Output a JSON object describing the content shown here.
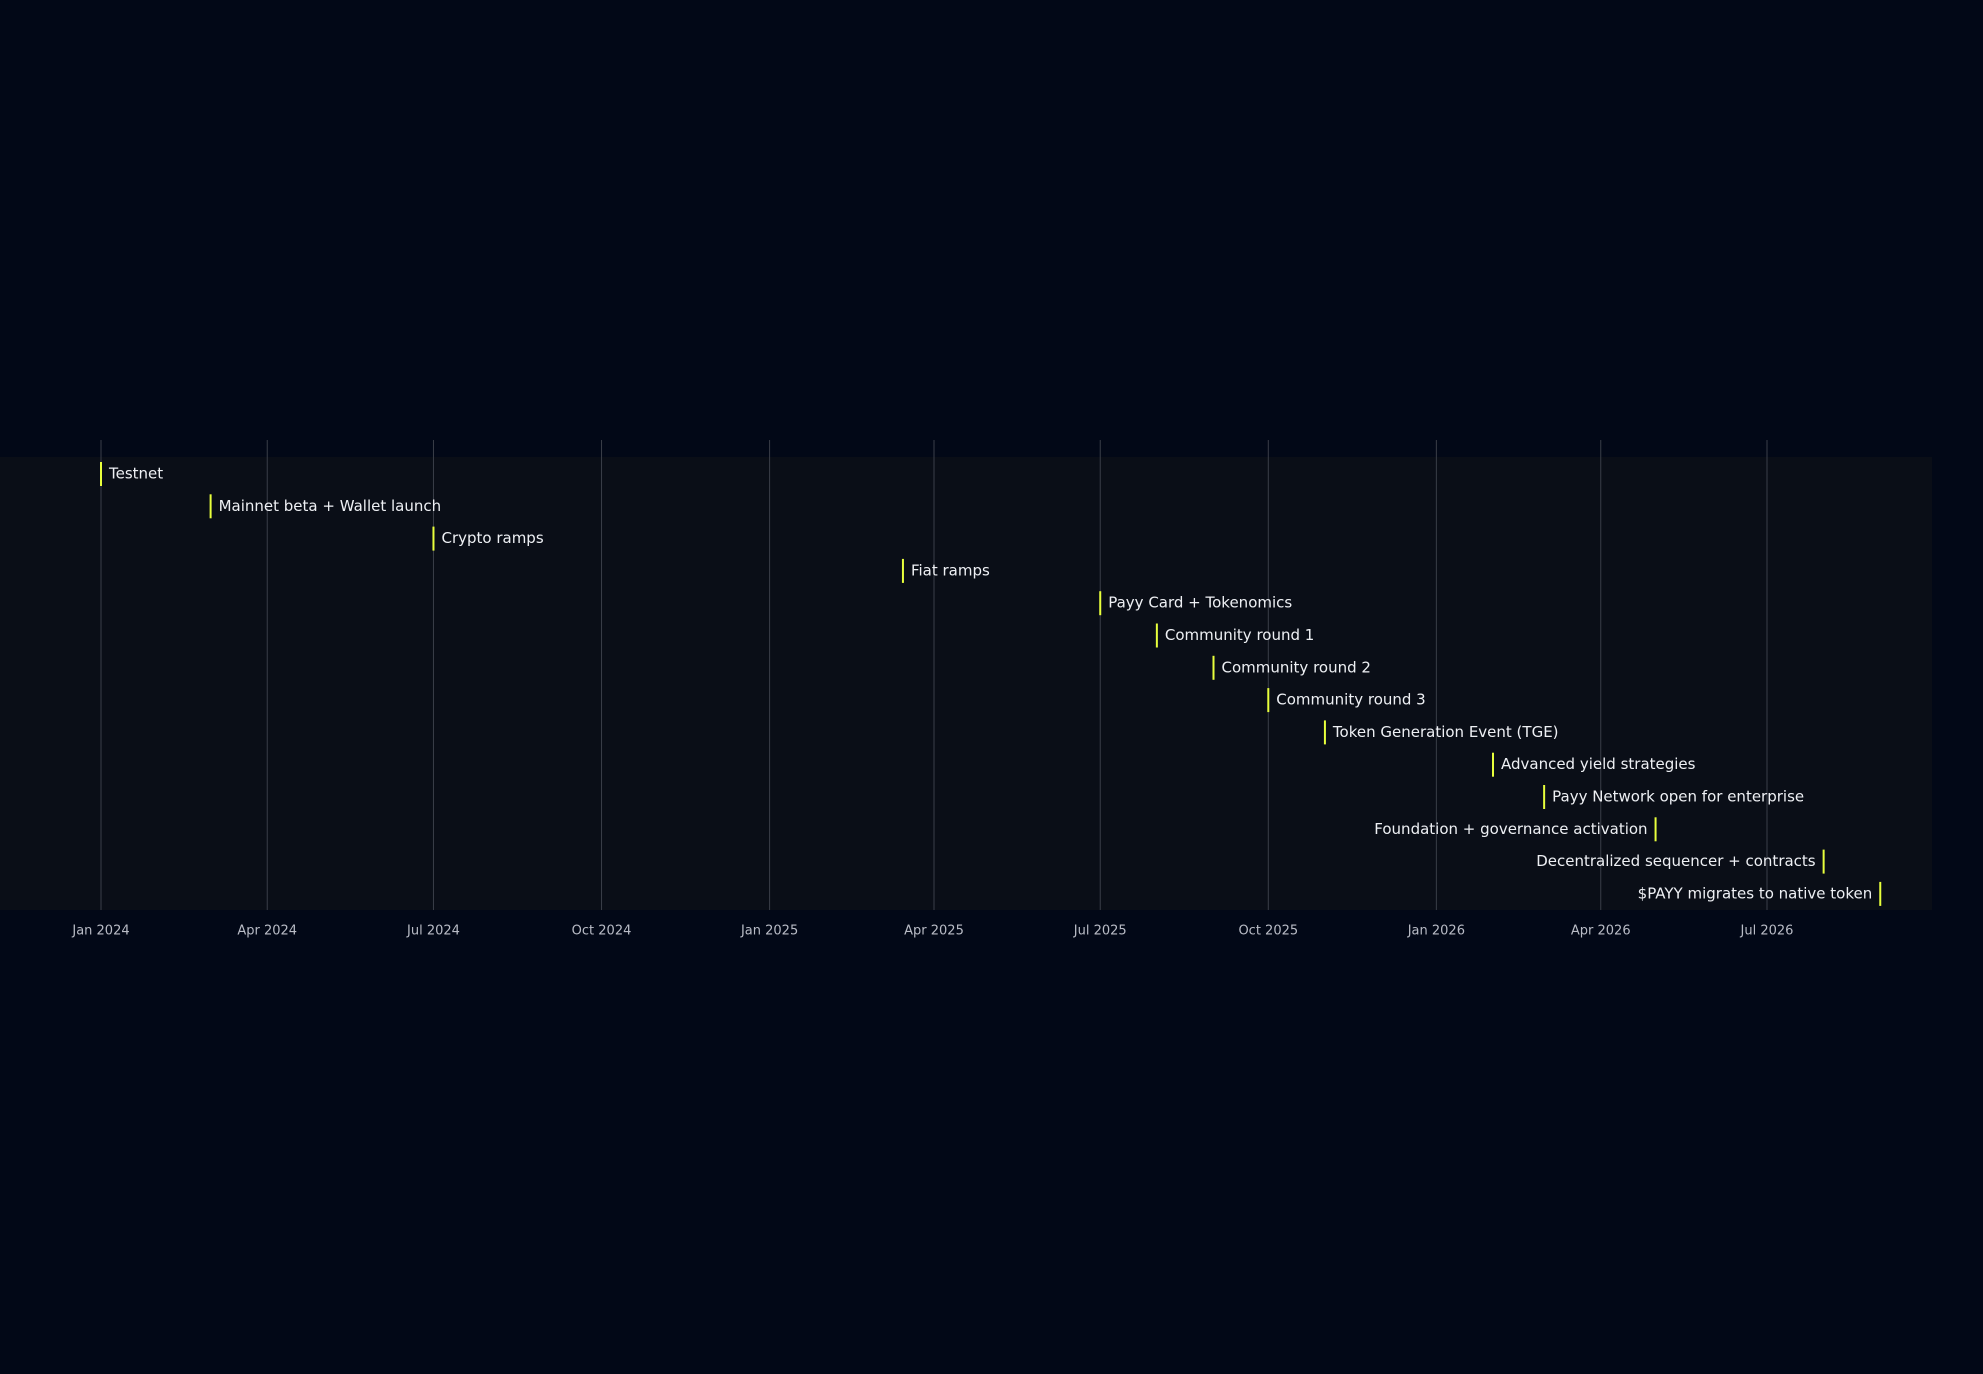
{
  "chart_data": {
    "type": "timeline",
    "title": "",
    "xlabel": "",
    "ylabel": "",
    "x_axis": {
      "type": "date",
      "range": [
        "2023-12-01",
        "2026-10-01"
      ],
      "ticks": [
        {
          "date": "2024-01-01",
          "label": "Jan 2024"
        },
        {
          "date": "2024-04-01",
          "label": "Apr 2024"
        },
        {
          "date": "2024-07-01",
          "label": "Jul 2024"
        },
        {
          "date": "2024-10-01",
          "label": "Oct 2024"
        },
        {
          "date": "2025-01-01",
          "label": "Jan 2025"
        },
        {
          "date": "2025-04-01",
          "label": "Apr 2025"
        },
        {
          "date": "2025-07-01",
          "label": "Jul 2025"
        },
        {
          "date": "2025-10-01",
          "label": "Oct 2025"
        },
        {
          "date": "2026-01-01",
          "label": "Jan 2026"
        },
        {
          "date": "2026-04-01",
          "label": "Apr 2026"
        },
        {
          "date": "2026-07-01",
          "label": "Jul 2026"
        }
      ],
      "grid": true
    },
    "milestones": [
      {
        "label": "Testnet",
        "date": "2024-01-01"
      },
      {
        "label": "Mainnet beta + Wallet launch",
        "date": "2024-03-01"
      },
      {
        "label": "Crypto ramps",
        "date": "2024-07-01"
      },
      {
        "label": "Fiat ramps",
        "date": "2025-03-15"
      },
      {
        "label": "Payy Card + Tokenomics",
        "date": "2025-07-01"
      },
      {
        "label": "Community round 1",
        "date": "2025-08-01"
      },
      {
        "label": "Community round 2",
        "date": "2025-09-01"
      },
      {
        "label": "Community round 3",
        "date": "2025-10-01"
      },
      {
        "label": "Token Generation Event (TGE)",
        "date": "2025-11-01"
      },
      {
        "label": "Advanced yield strategies",
        "date": "2026-02-01"
      },
      {
        "label": "Payy Network open for enterprise",
        "date": "2026-03-01"
      },
      {
        "label": "Foundation + governance activation",
        "date": "2026-05-01"
      },
      {
        "label": "Decentralized sequencer + contracts",
        "date": "2026-08-01"
      },
      {
        "label": "$PAYY migrates to native token",
        "date": "2026-09-01"
      }
    ],
    "colors": {
      "page_background": "#020817",
      "plot_background": "#0a0e17",
      "gridline": "#3a3e48",
      "marker": "#e8ff3c",
      "label_text": "#eef0f4",
      "tick_text": "#b9bcc6"
    }
  }
}
